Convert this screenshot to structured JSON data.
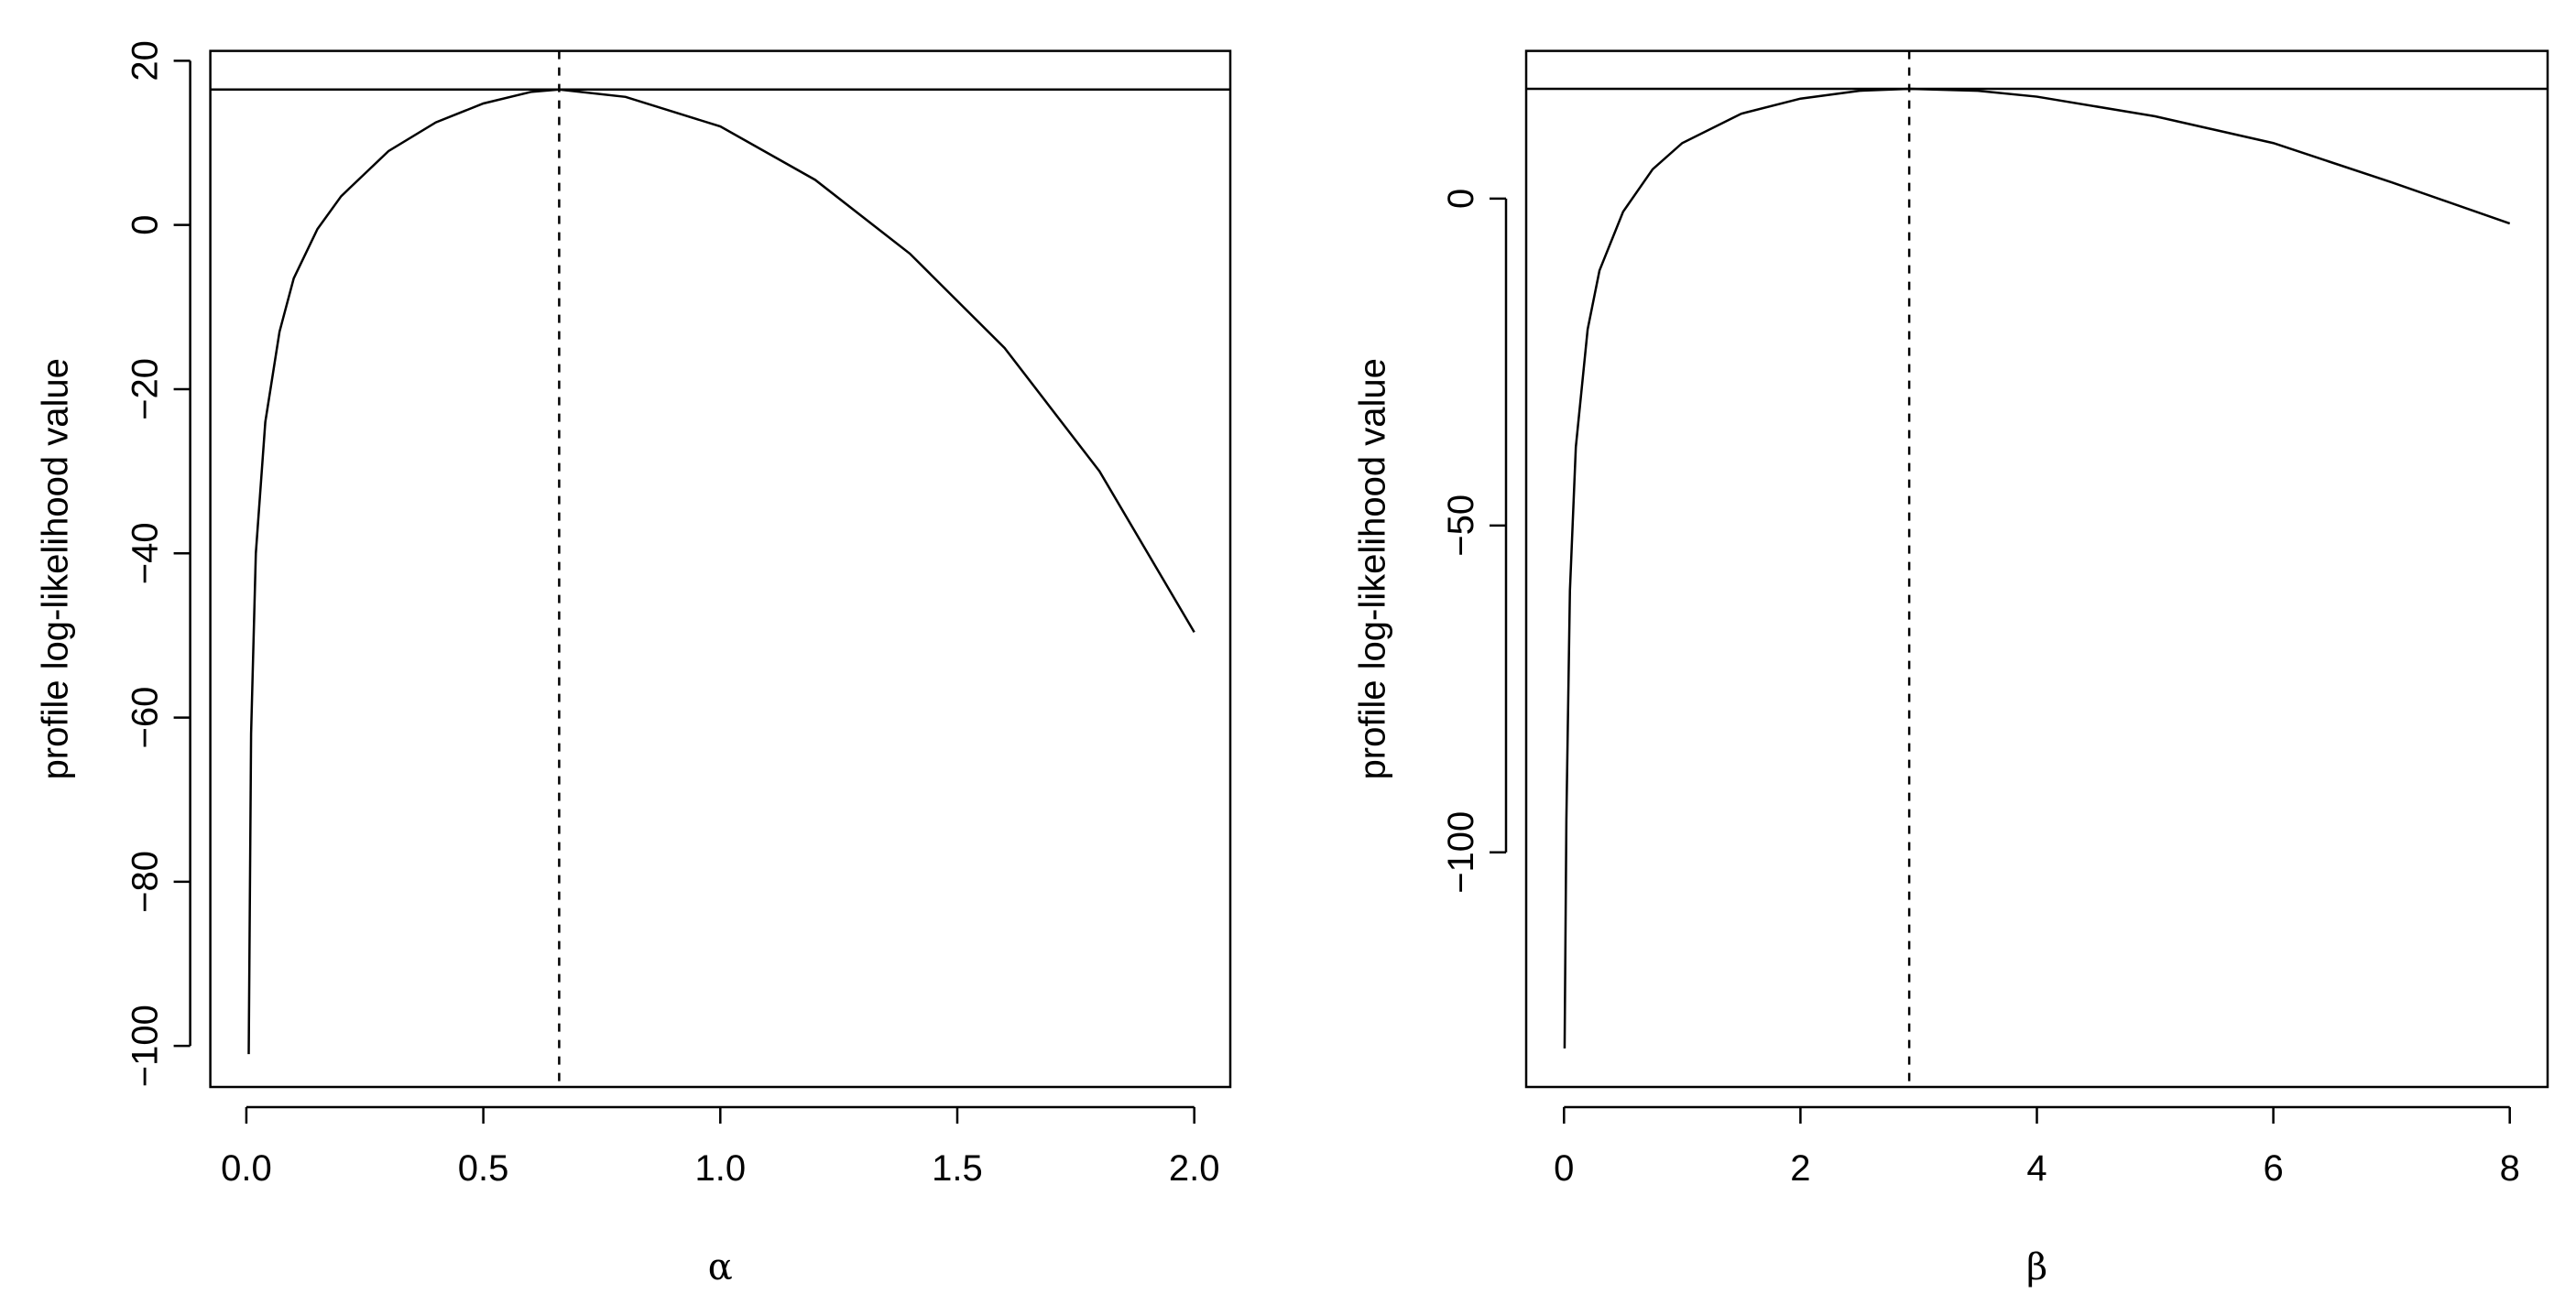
{
  "chart_data": [
    {
      "type": "line",
      "xlabel": "α",
      "ylabel": "profile log-likelihood value",
      "x": [
        0.005,
        0.01,
        0.02,
        0.04,
        0.07,
        0.1,
        0.15,
        0.2,
        0.3,
        0.4,
        0.5,
        0.6,
        0.66,
        0.8,
        1.0,
        1.2,
        1.4,
        1.6,
        1.8,
        2.0
      ],
      "series": [
        {
          "color": "#000000",
          "values": [
            -101,
            -62,
            -40,
            -24,
            -13,
            -6.5,
            -0.5,
            3.5,
            9,
            12.5,
            14.8,
            16.2,
            16.5,
            15.6,
            12,
            5.5,
            -3.5,
            -15,
            -30,
            -49.6
          ]
        }
      ],
      "hline": 16.5,
      "vline": 0.66,
      "xlim": [
        -0.076,
        2.076
      ],
      "ylim": [
        -105,
        21.2
      ],
      "xticks": [
        {
          "value": 0,
          "label": "0.0"
        },
        0.5,
        {
          "value": 1,
          "label": "1.0"
        },
        1.5,
        {
          "value": 2,
          "label": "2.0"
        }
      ],
      "yticks": [
        {
          "value": -100,
          "label": "−100"
        },
        {
          "value": -80,
          "label": "−80"
        },
        {
          "value": -60,
          "label": "−60"
        },
        {
          "value": -40,
          "label": "−40"
        },
        {
          "value": -20,
          "label": "−20"
        },
        0,
        20
      ]
    },
    {
      "type": "line",
      "xlabel": "β",
      "ylabel": "profile log-likelihood value",
      "x": [
        0.005,
        0.02,
        0.05,
        0.1,
        0.2,
        0.3,
        0.5,
        0.75,
        1,
        1.5,
        2,
        2.5,
        2.92,
        3.5,
        4,
        5,
        6,
        7,
        8
      ],
      "series": [
        {
          "color": "#000000",
          "values": [
            -130,
            -95,
            -60,
            -38,
            -20,
            -11,
            -2,
            4.5,
            8.5,
            13,
            15.3,
            16.5,
            16.8,
            16.5,
            15.6,
            12.6,
            8.5,
            2.5,
            -3.8
          ]
        }
      ],
      "hline": 16.8,
      "vline": 2.92,
      "xlim": [
        -0.32,
        8.32
      ],
      "ylim": [
        -135.9,
        22.6
      ],
      "xticks": [
        0,
        2,
        4,
        6,
        8
      ],
      "yticks": [
        {
          "value": -100,
          "label": "−100"
        },
        {
          "value": -50,
          "label": "−50"
        },
        0
      ]
    }
  ]
}
